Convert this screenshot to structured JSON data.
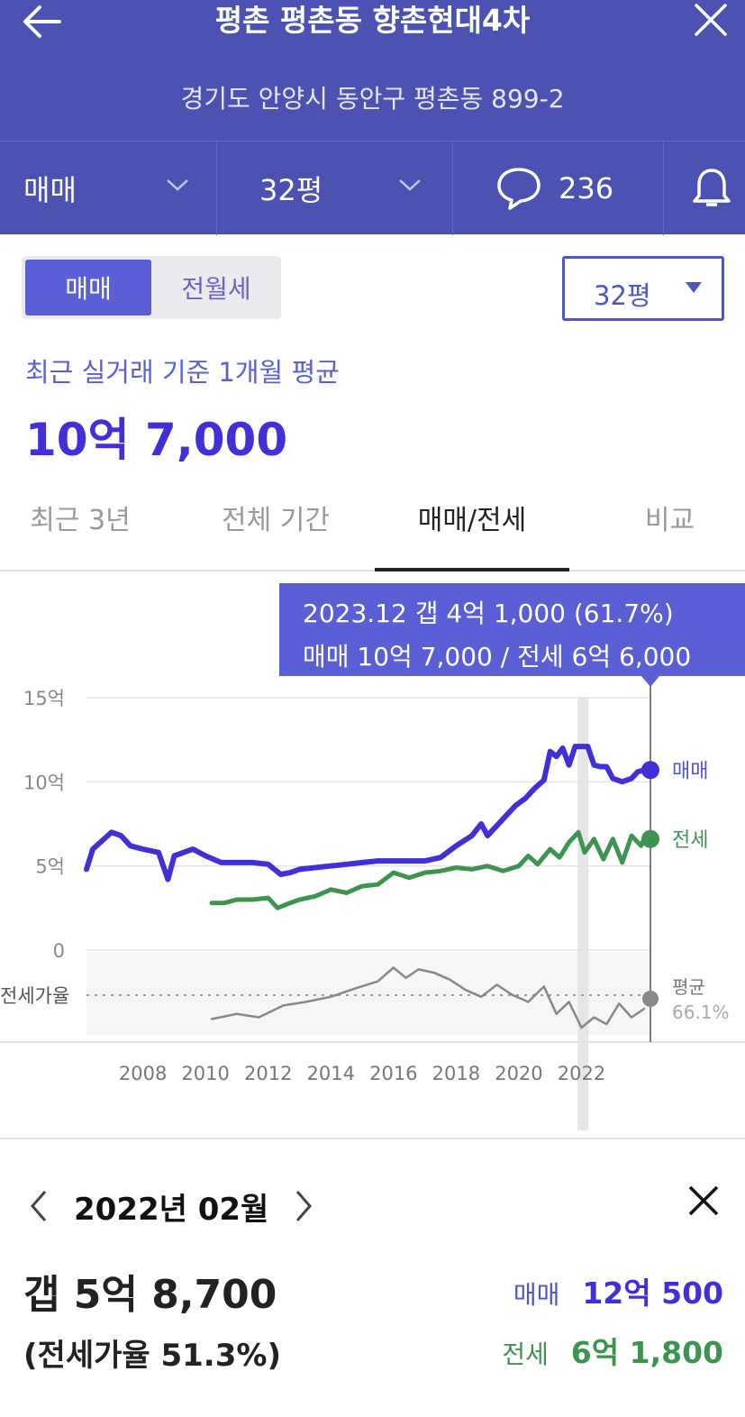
{
  "header": {
    "title": "평촌 평촌동 향촌현대4차",
    "address": "경기도 안양시 동안구 평촌동 899-2",
    "trade_type": "매매",
    "size": "32평",
    "comment_count": "236"
  },
  "toggle": {
    "sale_label": "매매",
    "rent_label": "전월세"
  },
  "size_select": {
    "value": "32평"
  },
  "summary": {
    "caption": "최근 실거래 기준 1개월 평균",
    "price": "10억 7,000"
  },
  "tabs": [
    "최근 3년",
    "전체 기간",
    "매매/전세",
    "비교"
  ],
  "active_tab": "매매/전세",
  "tooltip": {
    "line1": "2023.12  갭 4억 1,000 (61.7%)",
    "line2": "매매 10억 7,000 / 전세 6억 6,000"
  },
  "colors": {
    "header": "#4b52b1",
    "accent": "#5a5fd5",
    "sale": "#4130d8",
    "jeonse": "#3c9450",
    "ratio": "#888888"
  },
  "chart_data": {
    "type": "line",
    "y_ticks": [
      "15억",
      "10억",
      "5억",
      "0"
    ],
    "ylim": [
      0,
      15
    ],
    "x_ticks": [
      "2008",
      "2010",
      "2012",
      "2014",
      "2016",
      "2018",
      "2020",
      "2022"
    ],
    "xlim": [
      2006.2,
      2024.2
    ],
    "series": [
      {
        "name": "매매",
        "color": "#4130d8",
        "x": [
          2006.2,
          2006.4,
          2006.7,
          2007.0,
          2007.3,
          2007.6,
          2008.0,
          2008.5,
          2008.8,
          2009.0,
          2009.3,
          2009.6,
          2010.0,
          2010.5,
          2011.0,
          2011.5,
          2012.0,
          2012.4,
          2012.7,
          2013.0,
          2013.5,
          2014.0,
          2014.5,
          2015.0,
          2015.5,
          2016.0,
          2016.5,
          2017.0,
          2017.5,
          2018.0,
          2018.5,
          2018.8,
          2019.0,
          2019.3,
          2019.6,
          2019.9,
          2020.2,
          2020.5,
          2020.8,
          2021.0,
          2021.2,
          2021.4,
          2021.6,
          2021.8,
          2022.0,
          2022.2,
          2022.4,
          2022.6,
          2022.8,
          2023.0,
          2023.3,
          2023.6,
          2023.8,
          2024.0
        ],
        "y": [
          4.8,
          6.0,
          6.5,
          7.0,
          6.8,
          6.2,
          6.0,
          5.8,
          4.2,
          5.6,
          5.8,
          6.0,
          5.6,
          5.2,
          5.2,
          5.2,
          5.1,
          4.5,
          4.6,
          4.8,
          4.9,
          5.0,
          5.1,
          5.2,
          5.3,
          5.3,
          5.3,
          5.3,
          5.5,
          6.2,
          6.8,
          7.5,
          6.8,
          7.4,
          8.0,
          8.6,
          9.0,
          9.6,
          10.1,
          11.8,
          11.5,
          12.0,
          11.0,
          12.1,
          12.1,
          12.1,
          11.0,
          10.9,
          10.9,
          10.2,
          10.0,
          10.2,
          10.6,
          10.7
        ]
      },
      {
        "name": "전세",
        "color": "#3c9450",
        "x": [
          2010.2,
          2010.6,
          2011.0,
          2011.5,
          2012.0,
          2012.3,
          2012.7,
          2013.0,
          2013.5,
          2014.0,
          2014.5,
          2015.0,
          2015.5,
          2016.0,
          2016.5,
          2017.0,
          2017.5,
          2018.0,
          2018.5,
          2019.0,
          2019.5,
          2020.0,
          2020.3,
          2020.6,
          2021.0,
          2021.3,
          2021.6,
          2021.9,
          2022.1,
          2022.4,
          2022.7,
          2023.0,
          2023.3,
          2023.6,
          2023.9,
          2024.0
        ],
        "y": [
          2.8,
          2.8,
          3.0,
          3.0,
          3.1,
          2.5,
          2.8,
          3.0,
          3.2,
          3.6,
          3.4,
          3.8,
          3.9,
          4.6,
          4.3,
          4.6,
          4.7,
          4.9,
          4.8,
          5.0,
          4.7,
          5.0,
          5.6,
          5.1,
          6.0,
          5.5,
          6.4,
          7.0,
          5.8,
          6.6,
          5.4,
          6.6,
          5.2,
          6.8,
          6.2,
          6.6
        ]
      },
      {
        "name": "전세가율",
        "color": "#888888",
        "x": [
          2010.2,
          2011.0,
          2011.7,
          2012.5,
          2013.2,
          2014.0,
          2014.8,
          2015.5,
          2016.0,
          2016.4,
          2016.8,
          2017.3,
          2017.8,
          2018.3,
          2018.8,
          2019.3,
          2019.8,
          2020.3,
          2020.8,
          2021.2,
          2021.6,
          2022.0,
          2022.4,
          2022.8,
          2023.2,
          2023.6,
          2024.0
        ],
        "y": [
          -3.5,
          -3.2,
          -3.4,
          -2.7,
          -2.5,
          -2.2,
          -1.7,
          -1.3,
          -0.5,
          -1.1,
          -0.6,
          -0.8,
          -1.2,
          -1.8,
          -2.2,
          -1.5,
          -2.1,
          -2.5,
          -1.6,
          -3.2,
          -2.5,
          -4.0,
          -3.4,
          -3.8,
          -2.6,
          -3.4,
          -2.9
        ]
      }
    ],
    "legend": {
      "sale": "매매",
      "jeonse": "전세",
      "avg_label": "평균",
      "avg_value": "66.1%",
      "ratio_label": "전세가율"
    }
  },
  "detail": {
    "month": "2022년 02월",
    "gap": "갭 5억 8,700",
    "ratio": "(전세가율 51.3%)",
    "sale_label": "매매",
    "sale_value": "12억 500",
    "jeonse_label": "전세",
    "jeonse_value": "6억 1,800"
  }
}
